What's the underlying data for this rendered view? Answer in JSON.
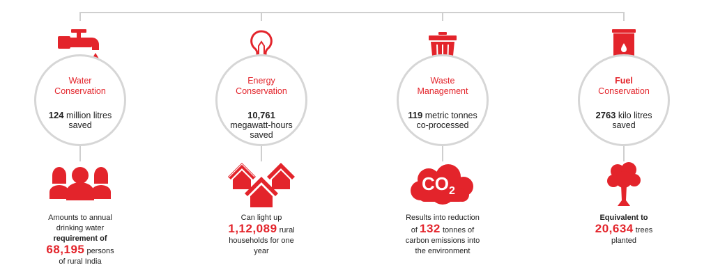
{
  "colors": {
    "accent": "#e3242b",
    "connector": "#cfcfcf",
    "ring": "#d6d6d6"
  },
  "columns": [
    {
      "title_line1": "Water",
      "title_line2": "Conservation",
      "stat_value": "124",
      "stat_unit": " million litres",
      "stat_line2": "saved",
      "top_icon": "water-tap-icon",
      "bottom_icon": "people-icon",
      "desc": {
        "line1": "Amounts to annual",
        "line2": "drinking water",
        "line3": "requirement of",
        "highlight": "68,195",
        "after_highlight": " persons",
        "line5": "of rural India"
      }
    },
    {
      "title_line1": "Energy",
      "title_line2": "Conservation",
      "stat_value": "10,761",
      "stat_line2": "megawatt-hours",
      "stat_line3": "saved",
      "top_icon": "light-bulb-icon",
      "bottom_icon": "houses-icon",
      "desc": {
        "line1": "Can light up",
        "highlight": "1,12,089",
        "after_highlight": " rural",
        "line3": "households for one",
        "line4": "year"
      }
    },
    {
      "title_line1": "Waste",
      "title_line2": "Management",
      "stat_value": "119",
      "stat_unit": " metric tonnes",
      "stat_line2": "co-processed",
      "top_icon": "trash-bin-icon",
      "bottom_icon": "co2-cloud-icon",
      "co2_label": "CO",
      "co2_sub": "2",
      "desc": {
        "line1": "Results into reduction",
        "before_highlight": "of ",
        "highlight": "132",
        "after_highlight": " tonnes of",
        "line3": "carbon emissions into",
        "line4": "the environment"
      }
    },
    {
      "title_line1": "Fuel",
      "title_line2": "Conservation",
      "stat_value": "2763",
      "stat_unit": " kilo litres",
      "stat_line2": "saved",
      "top_icon": "fuel-barrel-icon",
      "bottom_icon": "tree-icon",
      "desc": {
        "line1": "Equivalent to",
        "highlight": "20,634",
        "after_highlight": " trees",
        "line3": "planted"
      }
    }
  ]
}
